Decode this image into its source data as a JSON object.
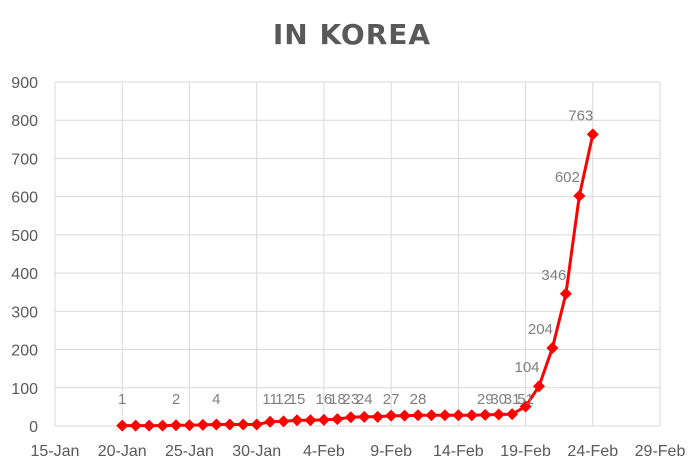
{
  "chart_data": {
    "type": "line",
    "title": "IN KOREA",
    "xlabel": "",
    "ylabel": "",
    "ylim": [
      0,
      900
    ],
    "y_ticks": [
      "0",
      "100",
      "200",
      "300",
      "400",
      "500",
      "600",
      "700",
      "800",
      "900"
    ],
    "x_range": [
      "2020-01-15",
      "2020-02-29"
    ],
    "x_ticks": [
      "15-Jan",
      "20-Jan",
      "25-Jan",
      "30-Jan",
      "4-Feb",
      "9-Feb",
      "14-Feb",
      "19-Feb",
      "24-Feb",
      "29-Feb"
    ],
    "grid": true,
    "legend": "none",
    "colors": {
      "series": "#ff0000",
      "grid": "#d9d9d9",
      "text": "#595959"
    },
    "series": [
      {
        "points": [
          {
            "x": "2020-01-20",
            "y": 1,
            "label": "1"
          },
          {
            "x": "2020-01-21",
            "y": 1
          },
          {
            "x": "2020-01-22",
            "y": 1
          },
          {
            "x": "2020-01-23",
            "y": 1
          },
          {
            "x": "2020-01-24",
            "y": 2,
            "label": "2"
          },
          {
            "x": "2020-01-25",
            "y": 2
          },
          {
            "x": "2020-01-26",
            "y": 3
          },
          {
            "x": "2020-01-27",
            "y": 4,
            "label": "4"
          },
          {
            "x": "2020-01-28",
            "y": 4
          },
          {
            "x": "2020-01-29",
            "y": 4
          },
          {
            "x": "2020-01-30",
            "y": 4
          },
          {
            "x": "2020-01-31",
            "y": 11,
            "label": "11"
          },
          {
            "x": "2020-02-01",
            "y": 12,
            "label": "12"
          },
          {
            "x": "2020-02-02",
            "y": 15,
            "label": "15"
          },
          {
            "x": "2020-02-03",
            "y": 15
          },
          {
            "x": "2020-02-04",
            "y": 16,
            "label": "16"
          },
          {
            "x": "2020-02-05",
            "y": 18,
            "label": "18"
          },
          {
            "x": "2020-02-06",
            "y": 23,
            "label": "23"
          },
          {
            "x": "2020-02-07",
            "y": 24,
            "label": "24"
          },
          {
            "x": "2020-02-08",
            "y": 24
          },
          {
            "x": "2020-02-09",
            "y": 27,
            "label": "27"
          },
          {
            "x": "2020-02-10",
            "y": 27
          },
          {
            "x": "2020-02-11",
            "y": 28,
            "label": "28"
          },
          {
            "x": "2020-02-12",
            "y": 28
          },
          {
            "x": "2020-02-13",
            "y": 28
          },
          {
            "x": "2020-02-14",
            "y": 28
          },
          {
            "x": "2020-02-15",
            "y": 28
          },
          {
            "x": "2020-02-16",
            "y": 29,
            "label": "29"
          },
          {
            "x": "2020-02-17",
            "y": 30,
            "label": "30"
          },
          {
            "x": "2020-02-18",
            "y": 31,
            "label": "31"
          },
          {
            "x": "2020-02-19",
            "y": 51,
            "label": "51"
          },
          {
            "x": "2020-02-20",
            "y": 104,
            "label": "104"
          },
          {
            "x": "2020-02-21",
            "y": 204,
            "label": "204"
          },
          {
            "x": "2020-02-22",
            "y": 346,
            "label": "346"
          },
          {
            "x": "2020-02-23",
            "y": 602,
            "label": "602"
          },
          {
            "x": "2020-02-24",
            "y": 763,
            "label": "763"
          }
        ]
      }
    ]
  }
}
